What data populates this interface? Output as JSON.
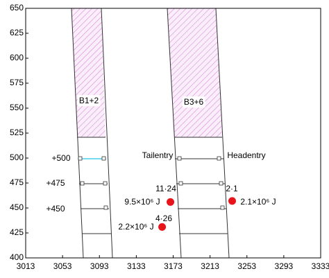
{
  "chart_data": {
    "type": "scatter",
    "xlim": [
      3013,
      3333
    ],
    "ylim": [
      400,
      650
    ],
    "xticks": [
      3013,
      3053,
      3093,
      3133,
      3173,
      3213,
      3253,
      3293,
      3333
    ],
    "yticks": [
      400,
      425,
      450,
      475,
      500,
      525,
      550,
      575,
      600,
      625,
      650
    ],
    "points": {
      "color": "#e8141c",
      "x": [
        3170,
        3237,
        3161
      ],
      "y": [
        456,
        457,
        431
      ]
    },
    "annotations": [
      "B1+2",
      "B3+6",
      "Tailentry",
      "Headentry",
      "+500",
      "+475",
      "+450",
      "11·24",
      "9.5×10⁶ J",
      "2·1",
      "2.1×10⁶ J",
      "4·26",
      "2.2×10⁶ J"
    ]
  }
}
